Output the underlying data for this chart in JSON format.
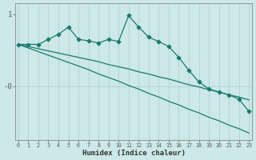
{
  "xlabel": "Humidex (Indice chaleur)",
  "bg_color": "#cce8e8",
  "line_color": "#1a7a6e",
  "grid_color": "#aacfcf",
  "x": [
    0,
    1,
    2,
    3,
    4,
    5,
    6,
    7,
    8,
    9,
    10,
    11,
    12,
    13,
    14,
    15,
    16,
    17,
    18,
    19,
    20,
    21,
    22,
    23
  ],
  "y_main": [
    0.58,
    0.58,
    0.58,
    0.65,
    0.72,
    0.82,
    0.65,
    0.63,
    0.6,
    0.65,
    0.62,
    0.98,
    0.82,
    0.68,
    0.62,
    0.55,
    0.4,
    0.22,
    0.06,
    -0.04,
    -0.08,
    -0.12,
    -0.18,
    -0.35
  ],
  "y_trend1": [
    0.58,
    0.55,
    0.52,
    0.49,
    0.46,
    0.43,
    0.4,
    0.37,
    0.34,
    0.3,
    0.27,
    0.24,
    0.2,
    0.17,
    0.13,
    0.1,
    0.06,
    0.02,
    -0.01,
    -0.05,
    -0.08,
    -0.12,
    -0.15,
    -0.19
  ],
  "y_trend2": [
    0.58,
    0.53,
    0.48,
    0.43,
    0.38,
    0.33,
    0.28,
    0.23,
    0.17,
    0.12,
    0.07,
    0.01,
    -0.04,
    -0.1,
    -0.15,
    -0.21,
    -0.26,
    -0.32,
    -0.37,
    -0.43,
    -0.48,
    -0.54,
    -0.59,
    -0.65
  ],
  "ylim": [
    -0.75,
    1.15
  ],
  "xlim": [
    -0.3,
    23.3
  ],
  "marker": "D",
  "markersize": 2.5,
  "linewidth": 0.9
}
